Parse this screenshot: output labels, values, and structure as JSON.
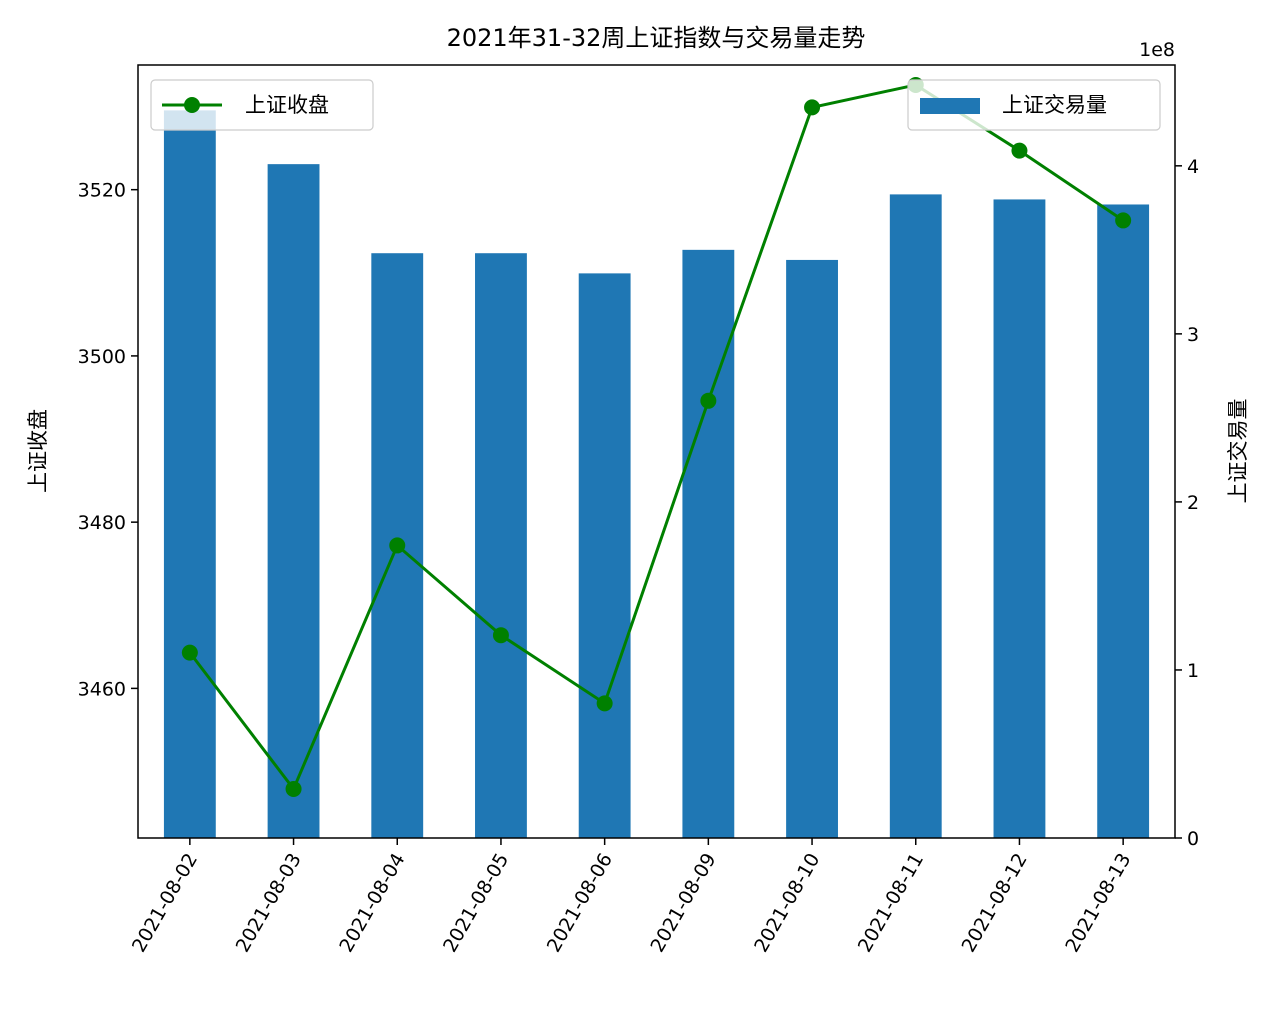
{
  "chart_data": {
    "type": "bar",
    "title": "2021年31-32周上证指数与交易量走势",
    "xlabel": "",
    "categories": [
      "2021-08-02",
      "2021-08-03",
      "2021-08-04",
      "2021-08-05",
      "2021-08-06",
      "2021-08-09",
      "2021-08-10",
      "2021-08-11",
      "2021-08-12",
      "2021-08-13"
    ],
    "left_axis": {
      "label": "上证收盘",
      "ylim": [
        3442,
        3535
      ],
      "ticks": [
        3460,
        3480,
        3500,
        3520
      ]
    },
    "right_axis": {
      "label": "上证交易量",
      "ylim": [
        0,
        4.6
      ],
      "ticks": [
        0,
        1,
        2,
        3,
        4
      ],
      "tick_labels": [
        "0",
        "1",
        "2",
        "3",
        "4"
      ],
      "offset_text": "1e8"
    },
    "series": [
      {
        "name": "上证收盘",
        "type": "line",
        "axis": "left",
        "color": "#008000",
        "marker": "circle",
        "values": [
          3464.3,
          3447.9,
          3477.2,
          3466.4,
          3458.2,
          3494.6,
          3529.9,
          3532.6,
          3524.7,
          3516.3
        ]
      },
      {
        "name": "上证交易量",
        "type": "bar",
        "axis": "right",
        "color": "#1f77b4",
        "values": [
          4.33,
          4.01,
          3.48,
          3.48,
          3.36,
          3.5,
          3.44,
          3.83,
          3.8,
          3.77
        ]
      }
    ],
    "legends": [
      {
        "placement": "top-left",
        "series": "上证收盘"
      },
      {
        "placement": "top-right",
        "series": "上证交易量"
      }
    ],
    "grid": false
  }
}
